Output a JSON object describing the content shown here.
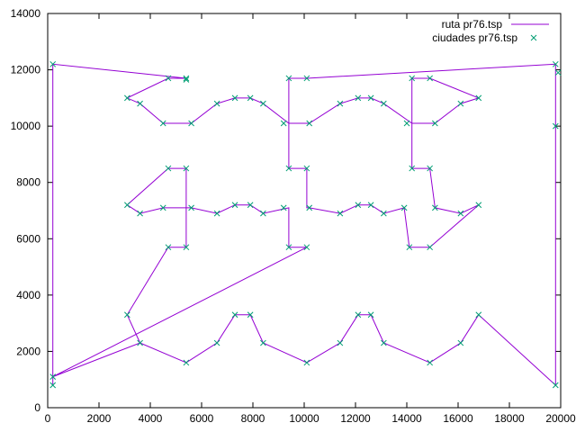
{
  "chart_data": {
    "type": "line",
    "title": "",
    "xlabel": "",
    "ylabel": "",
    "xlim": [
      0,
      20000
    ],
    "ylim": [
      0,
      14000
    ],
    "x_ticks": [
      0,
      2000,
      4000,
      6000,
      8000,
      10000,
      12000,
      14000,
      16000,
      18000,
      20000
    ],
    "y_ticks": [
      0,
      2000,
      4000,
      6000,
      8000,
      10000,
      12000,
      14000
    ],
    "grid": false,
    "legend_position": "top-right",
    "series": [
      {
        "name": "ruta pr76.tsp",
        "style": "line",
        "color": "#9400d3",
        "points": [
          [
            200,
            1100
          ],
          [
            3600,
            2300
          ],
          [
            5400,
            1600
          ],
          [
            6600,
            2300
          ],
          [
            7300,
            3300
          ],
          [
            7900,
            3300
          ],
          [
            8400,
            2300
          ],
          [
            10100,
            1600
          ],
          [
            11400,
            2300
          ],
          [
            12100,
            3300
          ],
          [
            12600,
            3300
          ],
          [
            13100,
            2300
          ],
          [
            14900,
            1600
          ],
          [
            16100,
            2300
          ],
          [
            16800,
            3300
          ],
          [
            19800,
            800
          ],
          [
            19800,
            10000
          ],
          [
            19800,
            11900
          ],
          [
            19800,
            12200
          ],
          [
            10100,
            11700
          ],
          [
            9400,
            11700
          ],
          [
            9400,
            10100
          ],
          [
            9400,
            8500
          ],
          [
            10100,
            8500
          ],
          [
            10100,
            7100
          ],
          [
            10200,
            7100
          ],
          [
            11400,
            6900
          ],
          [
            12100,
            7200
          ],
          [
            12600,
            7200
          ],
          [
            13100,
            6900
          ],
          [
            13900,
            7100
          ],
          [
            14100,
            5700
          ],
          [
            14900,
            5700
          ],
          [
            16800,
            7200
          ],
          [
            16100,
            6900
          ],
          [
            15100,
            7100
          ],
          [
            14900,
            8500
          ],
          [
            14200,
            8500
          ],
          [
            14200,
            10100
          ],
          [
            14200,
            11700
          ],
          [
            14900,
            11700
          ],
          [
            16800,
            11000
          ],
          [
            16100,
            10800
          ],
          [
            15100,
            10100
          ],
          [
            14200,
            10100
          ],
          [
            13100,
            10800
          ],
          [
            12600,
            11000
          ],
          [
            12100,
            11000
          ],
          [
            11400,
            10800
          ],
          [
            10200,
            10100
          ],
          [
            9400,
            10100
          ],
          [
            8400,
            10800
          ],
          [
            7900,
            11000
          ],
          [
            7300,
            11000
          ],
          [
            6600,
            10800
          ],
          [
            5600,
            10100
          ],
          [
            4500,
            10100
          ],
          [
            3600,
            10800
          ],
          [
            3100,
            11000
          ],
          [
            4700,
            11700
          ],
          [
            5400,
            11700
          ],
          [
            200,
            12200
          ],
          [
            200,
            1100
          ],
          [
            200,
            800
          ],
          [
            200,
            1100
          ],
          [
            10100,
            5700
          ],
          [
            9400,
            5700
          ],
          [
            9400,
            7100
          ],
          [
            8400,
            6900
          ],
          [
            7900,
            7200
          ],
          [
            7300,
            7200
          ],
          [
            6600,
            6900
          ],
          [
            5600,
            7100
          ],
          [
            4500,
            7100
          ],
          [
            3600,
            6900
          ],
          [
            3100,
            7200
          ],
          [
            4700,
            8500
          ],
          [
            5400,
            8500
          ],
          [
            5400,
            5700
          ],
          [
            4700,
            5700
          ],
          [
            3100,
            3300
          ],
          [
            3600,
            2300
          ]
        ]
      },
      {
        "name": "ciudades pr76.tsp",
        "style": "markers",
        "color": "#009e73",
        "points": [
          [
            200,
            800
          ],
          [
            200,
            1100
          ],
          [
            3600,
            2300
          ],
          [
            3100,
            3300
          ],
          [
            5400,
            1600
          ],
          [
            6600,
            2300
          ],
          [
            7300,
            3300
          ],
          [
            7900,
            3300
          ],
          [
            8400,
            2300
          ],
          [
            10100,
            1600
          ],
          [
            11400,
            2300
          ],
          [
            12100,
            3300
          ],
          [
            12600,
            3300
          ],
          [
            13100,
            2300
          ],
          [
            14900,
            1600
          ],
          [
            16100,
            2300
          ],
          [
            16800,
            3300
          ],
          [
            19800,
            800
          ],
          [
            4700,
            5700
          ],
          [
            5400,
            5700
          ],
          [
            9400,
            5700
          ],
          [
            10100,
            5700
          ],
          [
            14100,
            5700
          ],
          [
            14900,
            5700
          ],
          [
            3100,
            7200
          ],
          [
            3600,
            6900
          ],
          [
            4500,
            7100
          ],
          [
            5600,
            7100
          ],
          [
            6600,
            6900
          ],
          [
            7300,
            7200
          ],
          [
            7900,
            7200
          ],
          [
            8400,
            6900
          ],
          [
            9200,
            7100
          ],
          [
            10200,
            7100
          ],
          [
            11400,
            6900
          ],
          [
            12100,
            7200
          ],
          [
            12600,
            7200
          ],
          [
            13100,
            6900
          ],
          [
            13900,
            7100
          ],
          [
            15100,
            7100
          ],
          [
            16100,
            6900
          ],
          [
            16800,
            7200
          ],
          [
            4700,
            8500
          ],
          [
            5400,
            8500
          ],
          [
            9400,
            8500
          ],
          [
            10100,
            8500
          ],
          [
            14200,
            8500
          ],
          [
            14900,
            8500
          ],
          [
            4500,
            10100
          ],
          [
            5600,
            10100
          ],
          [
            9200,
            10100
          ],
          [
            10200,
            10100
          ],
          [
            14000,
            10100
          ],
          [
            15100,
            10100
          ],
          [
            19800,
            10000
          ],
          [
            3100,
            11000
          ],
          [
            3600,
            10800
          ],
          [
            6600,
            10800
          ],
          [
            7300,
            11000
          ],
          [
            7900,
            11000
          ],
          [
            8400,
            10800
          ],
          [
            11400,
            10800
          ],
          [
            12100,
            11000
          ],
          [
            12600,
            11000
          ],
          [
            13100,
            10800
          ],
          [
            16100,
            10800
          ],
          [
            16800,
            11000
          ],
          [
            4700,
            11700
          ],
          [
            5400,
            11700
          ],
          [
            5400,
            11650
          ],
          [
            9400,
            11700
          ],
          [
            10100,
            11700
          ],
          [
            14200,
            11700
          ],
          [
            14900,
            11700
          ],
          [
            200,
            12200
          ],
          [
            19800,
            12200
          ],
          [
            19900,
            11900
          ]
        ]
      }
    ]
  }
}
